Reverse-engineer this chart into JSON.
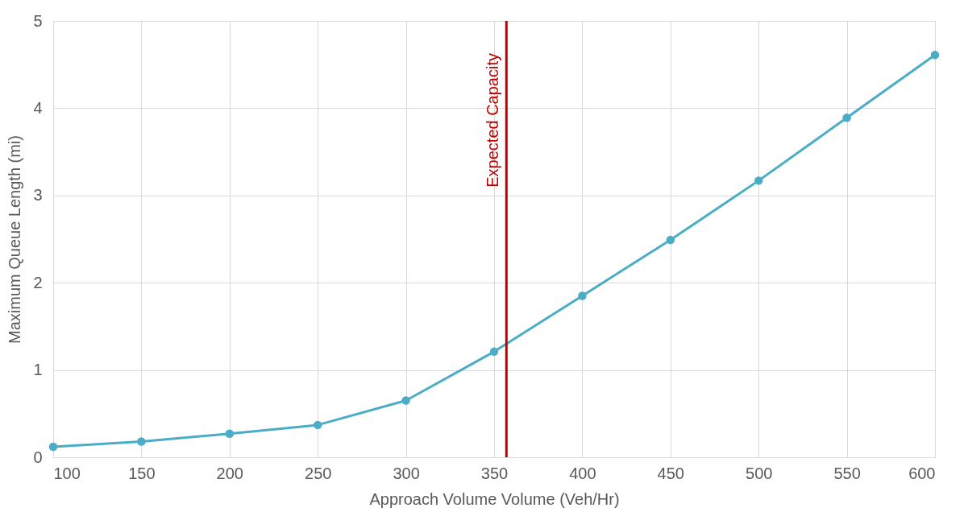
{
  "chart_data": {
    "type": "line",
    "xlabel": "Approach Volume Volume (Veh/Hr)",
    "ylabel": "Maximum Queue Length (mi)",
    "x": [
      100,
      150,
      200,
      250,
      300,
      350,
      400,
      450,
      500,
      550,
      600
    ],
    "series": [
      {
        "color": "#4bacc6",
        "values": [
          0.12,
          0.18,
          0.27,
          0.37,
          0.65,
          1.21,
          1.85,
          2.49,
          3.17,
          3.89,
          4.61
        ]
      }
    ],
    "xlim": [
      100,
      600
    ],
    "xticks": [
      100,
      150,
      200,
      250,
      300,
      350,
      400,
      450,
      500,
      550,
      600
    ],
    "ylim": [
      0,
      5
    ],
    "yticks": [
      0,
      1,
      2,
      3,
      4,
      5
    ],
    "ref_lines": [
      {
        "axis": "x",
        "value": 357,
        "label": "Expected Capacity",
        "color": "#c00000"
      }
    ],
    "grid": true,
    "marker": "circle",
    "line_style": "solid"
  }
}
